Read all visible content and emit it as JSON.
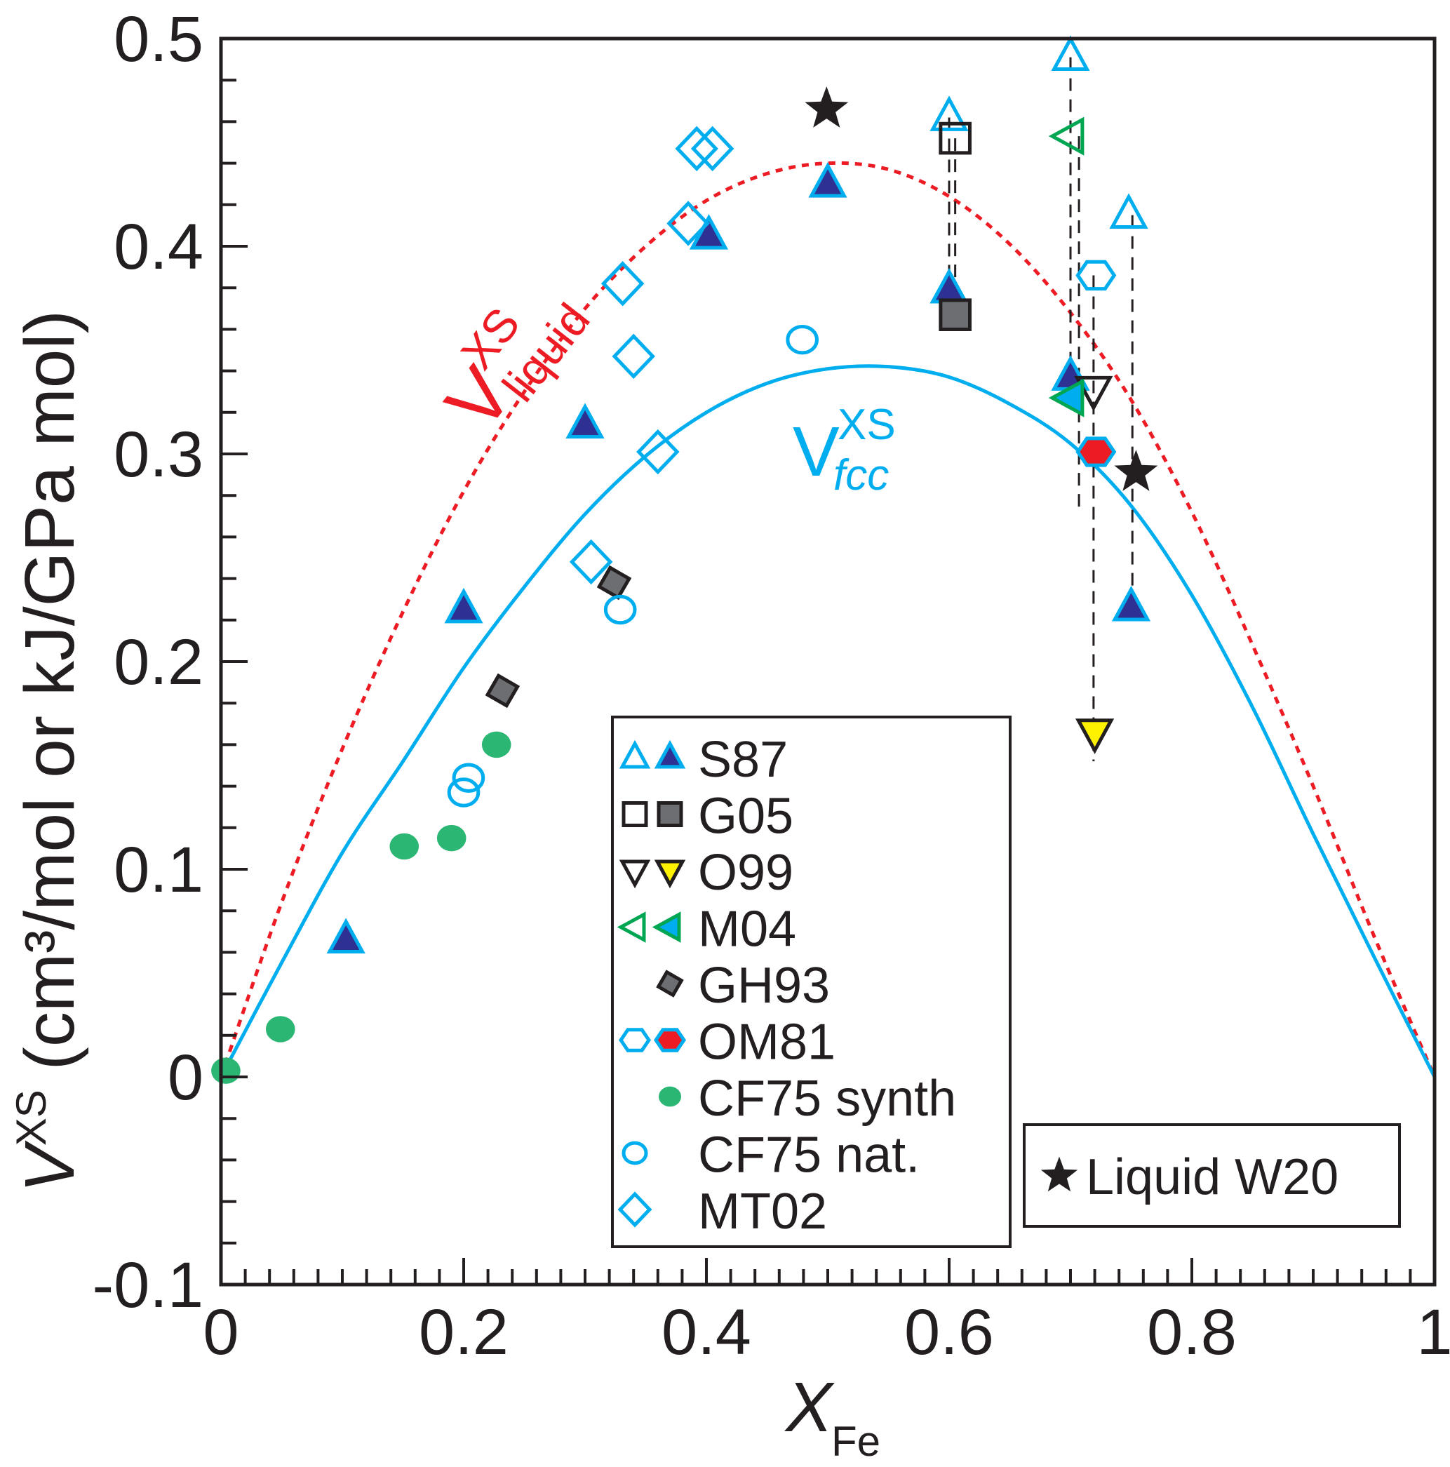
{
  "chart_data": {
    "type": "scatter",
    "title": "",
    "xlabel": "X",
    "xlabel_sub": "Fe",
    "ylabel_main": "V",
    "ylabel_sup": "XS",
    "ylabel_units": " (cm³/mol or kJ/GPa mol)",
    "xlim": [
      0,
      1
    ],
    "ylim": [
      -0.1,
      0.5
    ],
    "x_ticks": [
      0,
      0.2,
      0.4,
      0.6,
      0.8,
      1
    ],
    "x_tick_labels": [
      "0",
      "0.2",
      "0.4",
      "0.6",
      "0.8",
      "1"
    ],
    "y_ticks": [
      -0.1,
      0,
      0.1,
      0.2,
      0.3,
      0.4,
      0.5
    ],
    "y_tick_labels": [
      "-0.1",
      "0",
      "0.1",
      "0.2",
      "0.3",
      "0.4",
      "0.5"
    ],
    "x_minor_step": 0.04,
    "y_minor_step": 0.02,
    "grid": false,
    "curves": [
      {
        "name": "V^XS liquid",
        "label_main": "V",
        "label_sup": "XS",
        "label_sub": "liquid",
        "style": "dotted",
        "color": "#ed1c24",
        "x": [
          0,
          0.05,
          0.1,
          0.15,
          0.2,
          0.25,
          0.3,
          0.35,
          0.4,
          0.45,
          0.5,
          0.55,
          0.6,
          0.65,
          0.7,
          0.75,
          0.8,
          0.85,
          0.9,
          0.95,
          1
        ],
        "y": [
          0,
          0.084,
          0.158,
          0.224,
          0.282,
          0.33,
          0.37,
          0.4,
          0.422,
          0.435,
          0.44,
          0.437,
          0.424,
          0.401,
          0.368,
          0.326,
          0.272,
          0.208,
          0.14,
          0.068,
          0
        ]
      },
      {
        "name": "V^XS fcc",
        "label_main": "V",
        "label_sup": "XS",
        "label_sub": "fcc",
        "style": "solid",
        "color": "#00aeef",
        "x": [
          0,
          0.05,
          0.1,
          0.15,
          0.2,
          0.25,
          0.3,
          0.35,
          0.4,
          0.45,
          0.5,
          0.55,
          0.6,
          0.65,
          0.7,
          0.75,
          0.8,
          0.85,
          0.9,
          0.95,
          1
        ],
        "y": [
          0,
          0.055,
          0.108,
          0.152,
          0.197,
          0.236,
          0.271,
          0.299,
          0.32,
          0.334,
          0.341,
          0.342,
          0.337,
          0.324,
          0.305,
          0.275,
          0.232,
          0.178,
          0.117,
          0.058,
          0
        ]
      }
    ],
    "series": [
      {
        "name": "S87",
        "variant": "open",
        "marker": "triangle-up",
        "stroke": "#00aeef",
        "fill": "none",
        "points": [
          [
            0.6,
            0.462
          ],
          [
            0.7,
            0.491
          ],
          [
            0.748,
            0.415
          ]
        ]
      },
      {
        "name": "S87",
        "variant": "filled",
        "marker": "triangle-up",
        "stroke": "#00aeef",
        "fill": "#2e3192",
        "points": [
          [
            0.103,
            0.066
          ],
          [
            0.2,
            0.225
          ],
          [
            0.3,
            0.314
          ],
          [
            0.402,
            0.405
          ],
          [
            0.5,
            0.43
          ],
          [
            0.6,
            0.379
          ],
          [
            0.7,
            0.337
          ],
          [
            0.75,
            0.226
          ]
        ]
      },
      {
        "name": "G05",
        "variant": "open",
        "marker": "square",
        "stroke": "#231f20",
        "fill": "none",
        "points": [
          [
            0.605,
            0.452
          ]
        ]
      },
      {
        "name": "G05",
        "variant": "filled",
        "marker": "square",
        "stroke": "#231f20",
        "fill": "#6d6e71",
        "points": [
          [
            0.605,
            0.367
          ]
        ]
      },
      {
        "name": "O99",
        "variant": "open",
        "marker": "triangle-down",
        "stroke": "#231f20",
        "fill": "none",
        "points": [
          [
            0.719,
            0.331
          ]
        ]
      },
      {
        "name": "O99",
        "variant": "filled",
        "marker": "triangle-down",
        "stroke": "#231f20",
        "fill": "#fff200",
        "points": [
          [
            0.72,
            0.166
          ]
        ]
      },
      {
        "name": "M04",
        "variant": "open",
        "marker": "triangle-left",
        "stroke": "#00a651",
        "fill": "none",
        "points": [
          [
            0.7,
            0.453
          ]
        ]
      },
      {
        "name": "M04",
        "variant": "filled",
        "marker": "triangle-left",
        "stroke": "#00a651",
        "fill": "#00aeef",
        "points": [
          [
            0.7,
            0.327
          ]
        ]
      },
      {
        "name": "GH93",
        "variant": "filled",
        "marker": "diamond-tilted",
        "stroke": "#231f20",
        "fill": "#6d6e71",
        "points": [
          [
            0.232,
            0.186
          ],
          [
            0.324,
            0.238
          ]
        ]
      },
      {
        "name": "OM81",
        "variant": "open",
        "marker": "hexagon",
        "stroke": "#00aeef",
        "fill": "none",
        "points": [
          [
            0.721,
            0.386
          ]
        ]
      },
      {
        "name": "OM81",
        "variant": "filled",
        "marker": "hexagon",
        "stroke": "#00aeef",
        "fill": "#ed1c24",
        "points": [
          [
            0.721,
            0.301
          ]
        ]
      },
      {
        "name": "CF75 synth",
        "variant": "filled",
        "marker": "circle",
        "stroke": "none",
        "fill": "#2bb673",
        "points": [
          [
            0.004,
            0.003
          ],
          [
            0.049,
            0.023
          ],
          [
            0.151,
            0.111
          ],
          [
            0.19,
            0.115
          ],
          [
            0.227,
            0.16
          ]
        ]
      },
      {
        "name": "CF75 nat.",
        "variant": "open",
        "marker": "circle",
        "stroke": "#00aeef",
        "fill": "none",
        "points": [
          [
            0.204,
            0.144
          ],
          [
            0.2,
            0.137
          ],
          [
            0.329,
            0.225
          ],
          [
            0.479,
            0.355
          ]
        ]
      },
      {
        "name": "MT02",
        "variant": "open",
        "marker": "diamond",
        "stroke": "#00aeef",
        "fill": "none",
        "points": [
          [
            0.392,
            0.447
          ],
          [
            0.405,
            0.447
          ],
          [
            0.385,
            0.411
          ],
          [
            0.331,
            0.382
          ],
          [
            0.34,
            0.347
          ],
          [
            0.36,
            0.301
          ],
          [
            0.305,
            0.248
          ]
        ]
      },
      {
        "name": "Liquid W20",
        "variant": "filled",
        "marker": "star",
        "stroke": "none",
        "fill": "#231f20",
        "points": [
          [
            0.499,
            0.466
          ],
          [
            0.754,
            0.291
          ]
        ]
      }
    ],
    "dashed_links": [
      {
        "x": 0.6,
        "y_from": 0.462,
        "y_to": 0.379
      },
      {
        "x": 0.605,
        "y_from": 0.452,
        "y_to": 0.367
      },
      {
        "x": 0.7,
        "y_from": 0.491,
        "y_to": 0.327
      },
      {
        "x": 0.707,
        "y_from": 0.453,
        "y_to": 0.272
      },
      {
        "x": 0.719,
        "y_from": 0.386,
        "y_to": 0.152
      },
      {
        "x": 0.751,
        "y_from": 0.415,
        "y_to": 0.226
      }
    ],
    "legend": {
      "placement": "bottom-center",
      "entries": [
        {
          "label": "S87",
          "markers": [
            0,
            1
          ]
        },
        {
          "label": "G05",
          "markers": [
            2,
            3
          ]
        },
        {
          "label": "O99",
          "markers": [
            4,
            5
          ]
        },
        {
          "label": "M04",
          "markers": [
            6,
            7
          ]
        },
        {
          "label": "GH93",
          "markers": [
            8
          ]
        },
        {
          "label": "OM81",
          "markers": [
            9,
            10
          ]
        },
        {
          "label": "CF75 synth",
          "markers": [
            11
          ]
        },
        {
          "label": "CF75 nat.",
          "markers": [
            12
          ]
        },
        {
          "label": "MT02",
          "markers": [
            13
          ]
        }
      ]
    },
    "legend2": {
      "placement": "bottom-right",
      "entries": [
        {
          "label": "Liquid W20",
          "markers": [
            14
          ]
        }
      ]
    }
  }
}
